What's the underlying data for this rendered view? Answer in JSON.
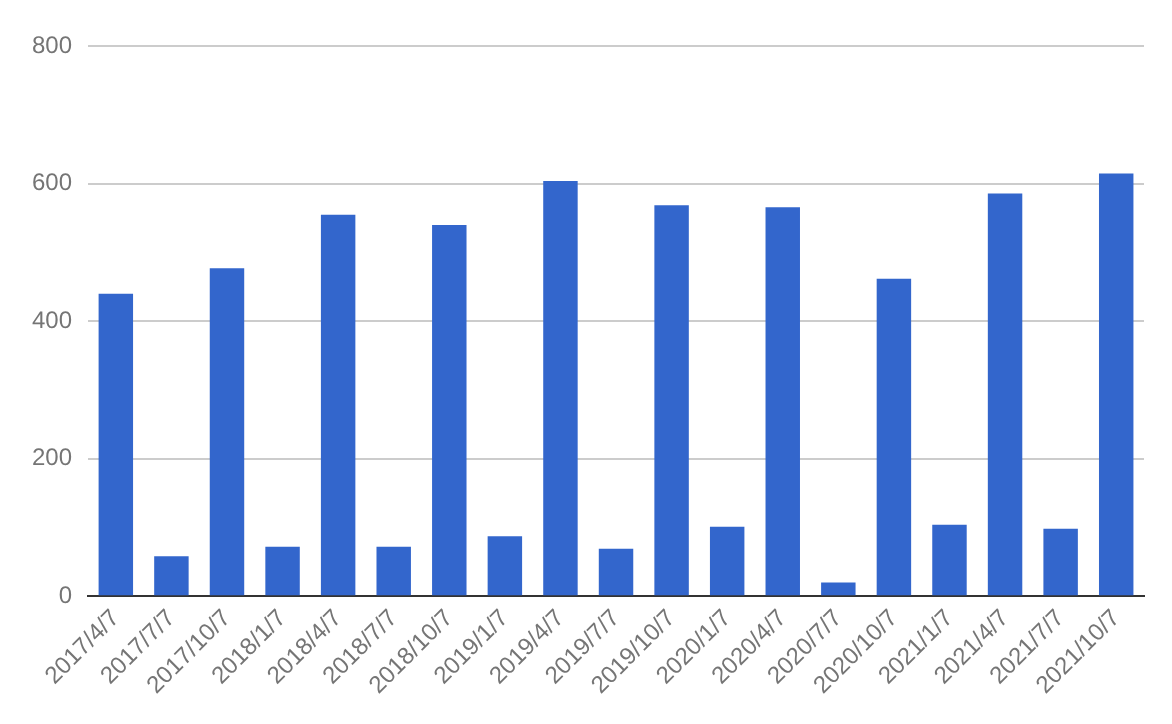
{
  "chart_data": {
    "type": "bar",
    "categories": [
      "2017/4/7",
      "2017/7/7",
      "2017/10/7",
      "2018/1/7",
      "2018/4/7",
      "2018/7/7",
      "2018/10/7",
      "2019/1/7",
      "2019/4/7",
      "2019/7/7",
      "2019/10/7",
      "2020/1/7",
      "2020/4/7",
      "2020/7/7",
      "2020/10/7",
      "2021/1/7",
      "2021/4/7",
      "2021/7/7",
      "2021/10/7"
    ],
    "values": [
      440,
      58,
      477,
      72,
      555,
      72,
      540,
      87,
      604,
      69,
      569,
      101,
      566,
      20,
      462,
      104,
      586,
      98,
      615
    ],
    "color": "#3366cc",
    "ylim": [
      0,
      800
    ],
    "yticks": [
      0,
      200,
      400,
      600,
      800
    ],
    "grid": "y",
    "legend": false
  }
}
